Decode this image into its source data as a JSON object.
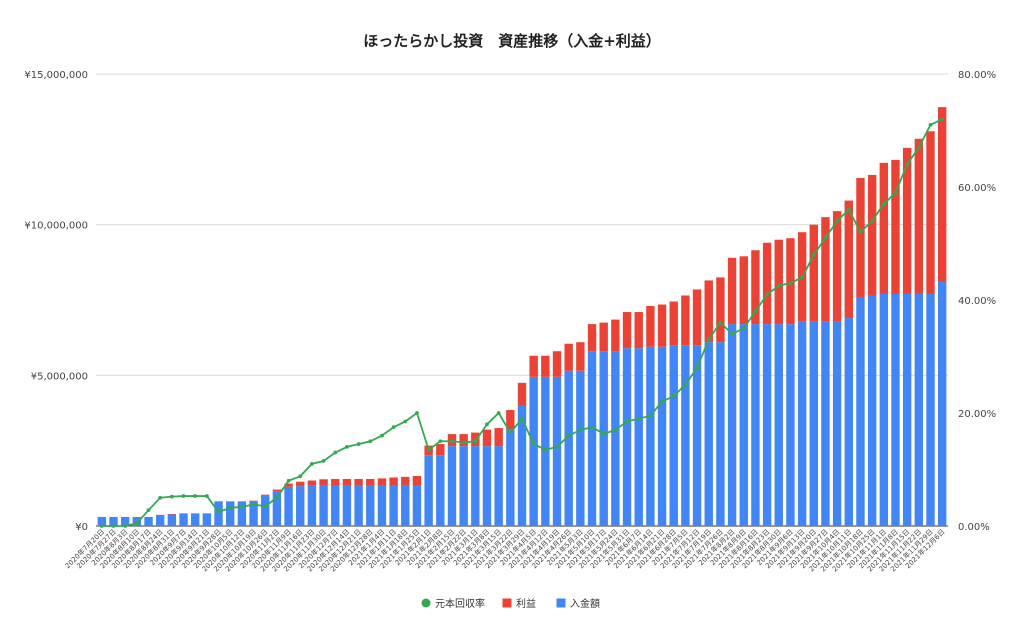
{
  "chart_data": {
    "type": "bar",
    "title": "ほったらかし投資　資産推移（入金+利益）",
    "left_axis": {
      "min": 0,
      "max": 15000000,
      "ticks": [
        "¥0",
        "¥5,000,000",
        "¥10,000,000",
        "¥15,000,000"
      ]
    },
    "right_axis": {
      "min": 0,
      "max": 80,
      "ticks": [
        "0.00%",
        "20.00%",
        "40.00%",
        "60.00%",
        "80.00%"
      ]
    },
    "stacked": true,
    "grid": true,
    "legend_position": "bottom",
    "colors": {
      "deposit": "#4285f4",
      "profit": "#ea4335",
      "rate": "#34a853"
    },
    "categories": [
      "2020年7月20日",
      "2020年7月27日",
      "2020年8月3日",
      "2020年8月10日",
      "2020年8月17日",
      "2020年8月24日",
      "2020年8月31日",
      "2020年9月7日",
      "2020年9月14日",
      "2020年9月21日",
      "2020年9月28日",
      "2020年10月5日",
      "2020年10月12日",
      "2020年10月19日",
      "2020年10月26日",
      "2020年11月2日",
      "2020年11月9日",
      "2020年11月16日",
      "2020年11月23日",
      "2020年11月30日",
      "2020年12月7日",
      "2020年12月14日",
      "2020年12月21日",
      "2020年12月28日",
      "2021年1月4日",
      "2021年1月11日",
      "2021年1月18日",
      "2021年1月25日",
      "2021年2月1日",
      "2021年2月8日",
      "2021年2月15日",
      "2021年2月22日",
      "2021年3月1日",
      "2021年3月8日",
      "2021年3月15日",
      "2021年3月22日",
      "2021年3月29日",
      "2021年4月5日",
      "2021年4月12日",
      "2021年4月19日",
      "2021年4月26日",
      "2021年5月3日",
      "2021年5月10日",
      "2021年5月17日",
      "2021年5月24日",
      "2021年5月31日",
      "2021年6月7日",
      "2021年6月14日",
      "2021年6月21日",
      "2021年6月28日",
      "2021年7月5日",
      "2021年7月12日",
      "2021年7月19日",
      "2021年7月26日",
      "2021年8月2日",
      "2021年8月9日",
      "2021年8月16日",
      "2021年8月23日",
      "2021年8月30日",
      "2021年9月6日",
      "2021年9月13日",
      "2021年9月20日",
      "2021年9月27日",
      "2021年10月4日",
      "2021年10月11日",
      "2021年10月18日",
      "2021年10月25日",
      "2021年11月1日",
      "2021年11月8日",
      "2021年11月15日",
      "2021年11月22日",
      "2021年11月29日",
      "2021年12月6日"
    ],
    "series": [
      {
        "name": "入金額",
        "type": "bar",
        "axis": "left",
        "values": [
          300000,
          300000,
          300000,
          300000,
          300000,
          350000,
          380000,
          400000,
          400000,
          400000,
          800000,
          800000,
          800000,
          800000,
          1000000,
          1150000,
          1300000,
          1320000,
          1340000,
          1360000,
          1360000,
          1360000,
          1360000,
          1360000,
          1360000,
          1360000,
          1360000,
          1360000,
          2350000,
          2350000,
          2650000,
          2650000,
          2650000,
          2650000,
          2650000,
          3200000,
          4000000,
          4950000,
          4950000,
          4950000,
          5150000,
          5150000,
          5800000,
          5800000,
          5800000,
          5900000,
          5900000,
          5950000,
          5950000,
          6000000,
          6000000,
          6000000,
          6100000,
          6100000,
          6700000,
          6700000,
          6700000,
          6700000,
          6700000,
          6700000,
          6800000,
          6800000,
          6800000,
          6800000,
          6900000,
          7600000,
          7650000,
          7700000,
          7700000,
          7700000,
          7700000,
          7700000,
          8100000
        ]
      },
      {
        "name": "利益",
        "type": "bar",
        "axis": "left",
        "values": [
          0,
          0,
          0,
          0,
          0,
          20000,
          20000,
          20000,
          20000,
          20000,
          20000,
          20000,
          20000,
          40000,
          40000,
          60000,
          110000,
          150000,
          170000,
          190000,
          200000,
          200000,
          200000,
          200000,
          220000,
          250000,
          270000,
          300000,
          320000,
          370000,
          400000,
          400000,
          450000,
          550000,
          600000,
          650000,
          750000,
          700000,
          700000,
          850000,
          900000,
          950000,
          900000,
          950000,
          1050000,
          1200000,
          1200000,
          1350000,
          1400000,
          1450000,
          1650000,
          1850000,
          2050000,
          2150000,
          2200000,
          2250000,
          2450000,
          2700000,
          2800000,
          2850000,
          2950000,
          3200000,
          3450000,
          3650000,
          3900000,
          3950000,
          4000000,
          4350000,
          4450000,
          4850000,
          5150000,
          5400000,
          5800000
        ]
      },
      {
        "name": "元本回収率",
        "type": "line",
        "axis": "right",
        "values": [
          0,
          0,
          0,
          0.5,
          2.8,
          5.0,
          5.2,
          5.3,
          5.3,
          5.3,
          2.5,
          3.2,
          3.4,
          3.8,
          3.5,
          5.0,
          8.0,
          8.8,
          11.0,
          11.5,
          13.0,
          14.0,
          14.5,
          15.0,
          16.0,
          17.5,
          18.5,
          20.0,
          13.5,
          15.0,
          15.0,
          14.8,
          15.0,
          18.0,
          20.0,
          16.5,
          19.0,
          14.5,
          13.5,
          14.0,
          16.0,
          17.0,
          17.5,
          16.3,
          17.0,
          18.5,
          19.0,
          19.5,
          22.0,
          23.0,
          25.0,
          28.0,
          33.0,
          36.0,
          34.0,
          35.0,
          38.0,
          41.0,
          42.5,
          43.0,
          44.0,
          48.0,
          51.0,
          54.0,
          56.0,
          52.0,
          54.0,
          57.0,
          59.0,
          64.0,
          67.0,
          71.0,
          72.0
        ]
      }
    ]
  }
}
